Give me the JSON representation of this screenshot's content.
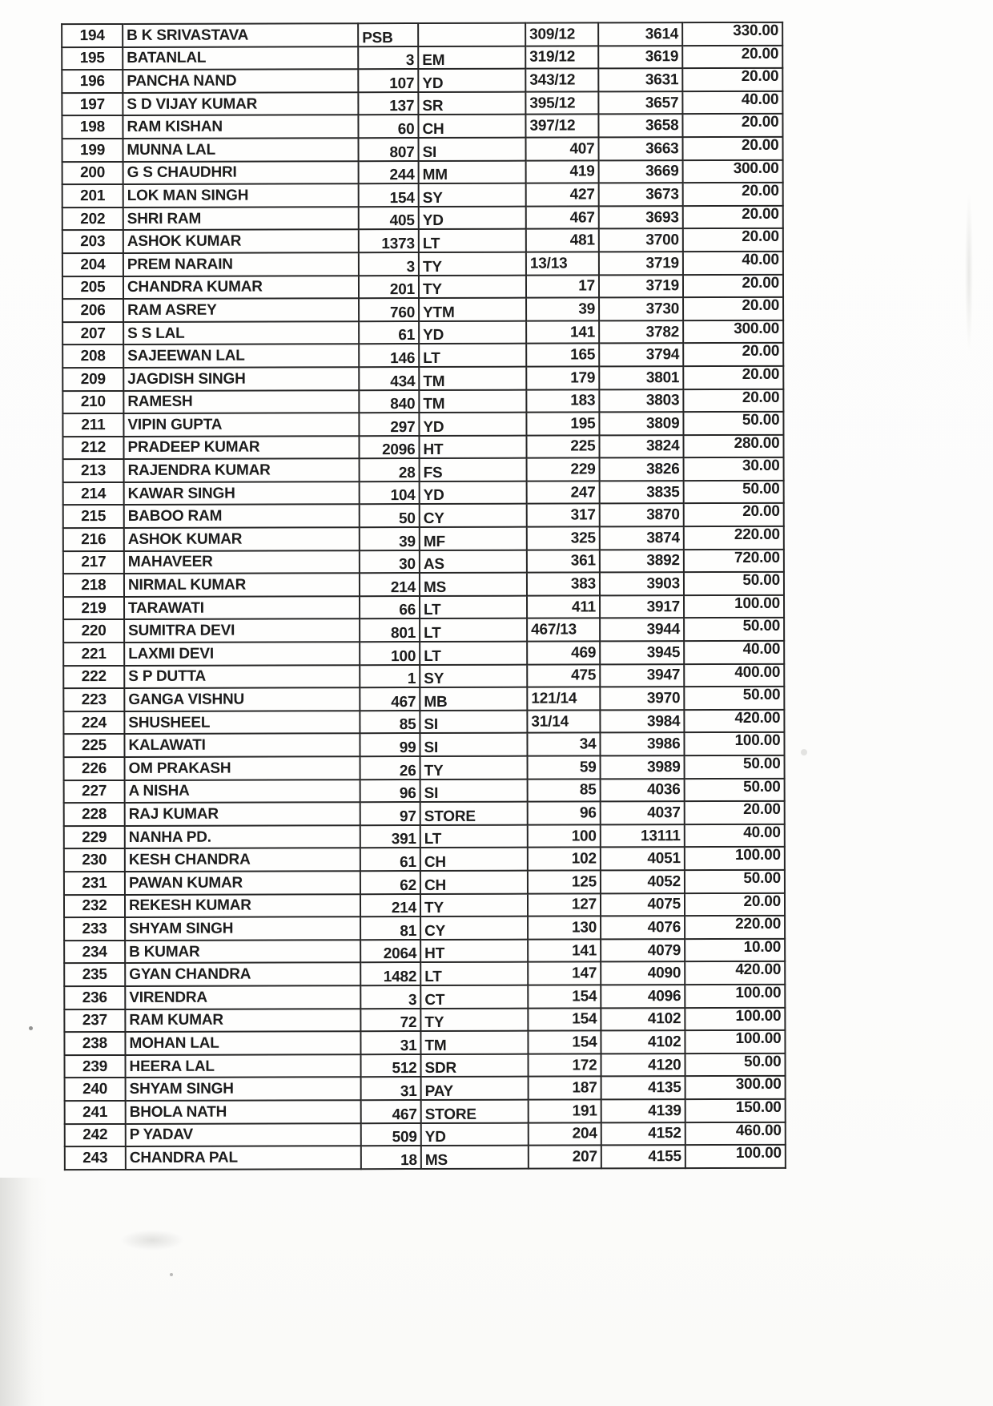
{
  "document": {
    "type": "scanned-ledger-table",
    "row_count": 50,
    "serial_range": "194-243"
  },
  "table": {
    "columns": [
      "serial",
      "name",
      "qty",
      "code",
      "ref",
      "doc",
      "amount"
    ],
    "rows": [
      [
        "194",
        "B K SRIVASTAVA",
        "PSB",
        "",
        "309/12",
        "3614",
        "330.00"
      ],
      [
        "195",
        "BATANLAL",
        "3",
        "EM",
        "319/12",
        "3619",
        "20.00"
      ],
      [
        "196",
        "PANCHA NAND",
        "107",
        "YD",
        "343/12",
        "3631",
        "20.00"
      ],
      [
        "197",
        "S D VIJAY KUMAR",
        "137",
        "SR",
        "395/12",
        "3657",
        "40.00"
      ],
      [
        "198",
        "RAM KISHAN",
        "60",
        "CH",
        "397/12",
        "3658",
        "20.00"
      ],
      [
        "199",
        "MUNNA LAL",
        "807",
        "SI",
        "407",
        "3663",
        "20.00"
      ],
      [
        "200",
        "G S CHAUDHRI",
        "244",
        "MM",
        "419",
        "3669",
        "300.00"
      ],
      [
        "201",
        "LOK MAN SINGH",
        "154",
        "SY",
        "427",
        "3673",
        "20.00"
      ],
      [
        "202",
        "SHRI RAM",
        "405",
        "YD",
        "467",
        "3693",
        "20.00"
      ],
      [
        "203",
        "ASHOK KUMAR",
        "1373",
        "LT",
        "481",
        "3700",
        "20.00"
      ],
      [
        "204",
        "PREM NARAIN",
        "3",
        "TY",
        "13/13",
        "3719",
        "40.00"
      ],
      [
        "205",
        "CHANDRA KUMAR",
        "201",
        "TY",
        "17",
        "3719",
        "20.00"
      ],
      [
        "206",
        "RAM ASREY",
        "760",
        "YTM",
        "39",
        "3730",
        "20.00"
      ],
      [
        "207",
        "S S LAL",
        "61",
        "YD",
        "141",
        "3782",
        "300.00"
      ],
      [
        "208",
        "SAJEEWAN LAL",
        "146",
        "LT",
        "165",
        "3794",
        "20.00"
      ],
      [
        "209",
        "JAGDISH SINGH",
        "434",
        "TM",
        "179",
        "3801",
        "20.00"
      ],
      [
        "210",
        "RAMESH",
        "840",
        "TM",
        "183",
        "3803",
        "20.00"
      ],
      [
        "211",
        "VIPIN GUPTA",
        "297",
        "YD",
        "195",
        "3809",
        "50.00"
      ],
      [
        "212",
        "PRADEEP KUMAR",
        "2096",
        "HT",
        "225",
        "3824",
        "280.00"
      ],
      [
        "213",
        "RAJENDRA KUMAR",
        "28",
        "FS",
        "229",
        "3826",
        "30.00"
      ],
      [
        "214",
        "KAWAR SINGH",
        "104",
        "YD",
        "247",
        "3835",
        "50.00"
      ],
      [
        "215",
        "BABOO RAM",
        "50",
        "CY",
        "317",
        "3870",
        "20.00"
      ],
      [
        "216",
        "ASHOK KUMAR",
        "39",
        "MF",
        "325",
        "3874",
        "220.00"
      ],
      [
        "217",
        "MAHAVEER",
        "30",
        "AS",
        "361",
        "3892",
        "720.00"
      ],
      [
        "218",
        "NIRMAL KUMAR",
        "214",
        "MS",
        "383",
        "3903",
        "50.00"
      ],
      [
        "219",
        "TARAWATI",
        "66",
        "LT",
        "411",
        "3917",
        "100.00"
      ],
      [
        "220",
        "SUMITRA DEVI",
        "801",
        "LT",
        "467/13",
        "3944",
        "50.00"
      ],
      [
        "221",
        "LAXMI DEVI",
        "100",
        "LT",
        "469",
        "3945",
        "40.00"
      ],
      [
        "222",
        "S P DUTTA",
        "1",
        "SY",
        "475",
        "3947",
        "400.00"
      ],
      [
        "223",
        "GANGA VISHNU",
        "467",
        "MB",
        "121/14",
        "3970",
        "50.00"
      ],
      [
        "224",
        "SHUSHEEL",
        "85",
        "SI",
        "31/14",
        "3984",
        "420.00"
      ],
      [
        "225",
        "KALAWATI",
        "99",
        "SI",
        "34",
        "3986",
        "100.00"
      ],
      [
        "226",
        "OM PRAKASH",
        "26",
        "TY",
        "59",
        "3989",
        "50.00"
      ],
      [
        "227",
        "A NISHA",
        "96",
        "SI",
        "85",
        "4036",
        "50.00"
      ],
      [
        "228",
        "RAJ KUMAR",
        "97",
        "STORE",
        "96",
        "4037",
        "20.00"
      ],
      [
        "229",
        "NANHA PD.",
        "391",
        "LT",
        "100",
        "13111",
        "40.00"
      ],
      [
        "230",
        "KESH CHANDRA",
        "61",
        "CH",
        "102",
        "4051",
        "100.00"
      ],
      [
        "231",
        "PAWAN KUMAR",
        "62",
        "CH",
        "125",
        "4052",
        "50.00"
      ],
      [
        "232",
        "REKESH KUMAR",
        "214",
        "TY",
        "127",
        "4075",
        "20.00"
      ],
      [
        "233",
        "SHYAM SINGH",
        "81",
        "CY",
        "130",
        "4076",
        "220.00"
      ],
      [
        "234",
        "B KUMAR",
        "2064",
        "HT",
        "141",
        "4079",
        "10.00"
      ],
      [
        "235",
        "GYAN CHANDRA",
        "1482",
        "LT",
        "147",
        "4090",
        "420.00"
      ],
      [
        "236",
        "VIRENDRA",
        "3",
        "CT",
        "154",
        "4096",
        "100.00"
      ],
      [
        "237",
        "RAM KUMAR",
        "72",
        "TY",
        "154",
        "4102",
        "100.00"
      ],
      [
        "238",
        "MOHAN LAL",
        "31",
        "TM",
        "154",
        "4102",
        "100.00"
      ],
      [
        "239",
        "HEERA LAL",
        "512",
        "SDR",
        "172",
        "4120",
        "50.00"
      ],
      [
        "240",
        "SHYAM SINGH",
        "31",
        "PAY",
        "187",
        "4135",
        "300.00"
      ],
      [
        "241",
        "BHOLA NATH",
        "467",
        "STORE",
        "191",
        "4139",
        "150.00"
      ],
      [
        "242",
        "P YADAV",
        "509",
        "YD",
        "204",
        "4152",
        "460.00"
      ],
      [
        "243",
        "CHANDRA PAL",
        "18",
        "MS",
        "207",
        "4155",
        "100.00"
      ]
    ]
  }
}
